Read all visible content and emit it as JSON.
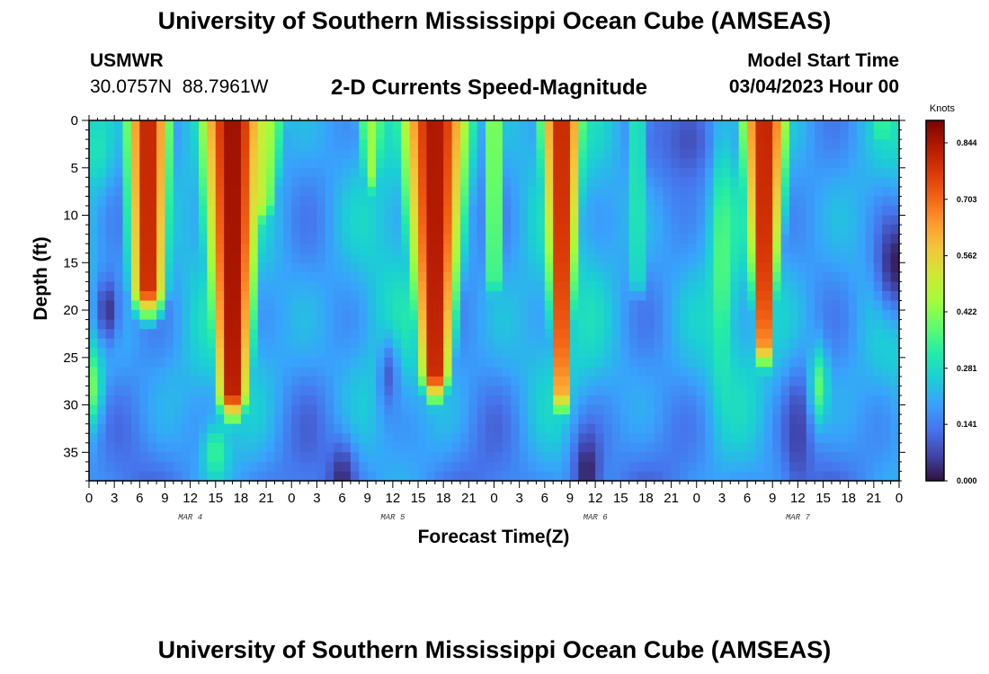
{
  "header": {
    "title": "University of Southern Mississippi Ocean Cube (AMSEAS)",
    "station": "USMWR",
    "coords": "30.0757N  88.7961W",
    "subtitle": "2-D Currents Speed-Magnitude",
    "start_label": "Model Start Time",
    "start_value": "03/04/2023 Hour 00"
  },
  "footer": {
    "title": "University of Southern Mississippi Ocean Cube (AMSEAS)"
  },
  "colors": {
    "scale": [
      "#30123b",
      "#4145ab",
      "#4675ed",
      "#39a2fc",
      "#1bcfd4",
      "#24eca6",
      "#61fc6c",
      "#a4fc3b",
      "#d1e835",
      "#f3c63a",
      "#fe9b2d",
      "#f36315",
      "#d93806",
      "#b11901",
      "#7a0403"
    ]
  },
  "chart_data": {
    "type": "heatmap",
    "title": "2-D Currents Speed-Magnitude",
    "xlabel": "Forecast Time(Z)",
    "ylabel": "Depth (ft)",
    "units": "Knots",
    "xlim": [
      0,
      96
    ],
    "ylim": [
      38,
      0
    ],
    "x_tick_labels": [
      "0",
      "3",
      "6",
      "9",
      "12",
      "15",
      "18",
      "21",
      "0",
      "3",
      "6",
      "9",
      "12",
      "15",
      "18",
      "21",
      "0",
      "3",
      "6",
      "9",
      "12",
      "15",
      "18",
      "21",
      "0",
      "3",
      "6",
      "9",
      "12",
      "15",
      "18",
      "21",
      "0"
    ],
    "date_labels": [
      {
        "label": "MAR 4",
        "hour": 12
      },
      {
        "label": "MAR 5",
        "hour": 36
      },
      {
        "label": "MAR 6",
        "hour": 60
      },
      {
        "label": "MAR 7",
        "hour": 84
      }
    ],
    "y_ticks": [
      0,
      5,
      10,
      15,
      20,
      25,
      30,
      35
    ],
    "colorbar": {
      "min": 0.0,
      "max": 0.9,
      "ticks": [
        "0.000",
        "0.141",
        "0.281",
        "0.422",
        "0.562",
        "0.703",
        "0.844"
      ]
    },
    "features": [
      {
        "type": "plume",
        "center_hour": 7,
        "half_width_top": 3.3,
        "half_width_bottom": 2.4,
        "bottom_depth": 21,
        "peak": 0.86
      },
      {
        "type": "plume",
        "center_hour": 17,
        "half_width_top": 4.8,
        "half_width_bottom": 2.0,
        "bottom_depth": 32,
        "peak": 0.9
      },
      {
        "type": "plume",
        "center_hour": 20.5,
        "half_width_top": 4.0,
        "half_width_bottom": 1.5,
        "bottom_depth": 12,
        "peak": 0.5
      },
      {
        "type": "plume",
        "center_hour": 41,
        "half_width_top": 5.2,
        "half_width_bottom": 1.8,
        "bottom_depth": 30,
        "peak": 0.88
      },
      {
        "type": "plume",
        "center_hour": 48,
        "half_width_top": 2.0,
        "half_width_bottom": 1.0,
        "bottom_depth": 20,
        "peak": 0.45
      },
      {
        "type": "plume",
        "center_hour": 33.5,
        "half_width_top": 2.5,
        "half_width_bottom": 1.0,
        "bottom_depth": 9,
        "peak": 0.45
      },
      {
        "type": "plume",
        "center_hour": 56,
        "half_width_top": 3.2,
        "half_width_bottom": 0.8,
        "bottom_depth": 32,
        "peak": 0.85
      },
      {
        "type": "plume",
        "center_hour": 65,
        "half_width_top": 2.0,
        "half_width_bottom": 1.0,
        "bottom_depth": 20,
        "peak": 0.35
      },
      {
        "type": "plume",
        "center_hour": 80,
        "half_width_top": 3.6,
        "half_width_bottom": 0.8,
        "bottom_depth": 27,
        "peak": 0.86
      },
      {
        "type": "plume",
        "center_hour": 94,
        "half_width_top": 1.6,
        "half_width_bottom": 0.8,
        "bottom_depth": 5,
        "peak": 0.38
      },
      {
        "type": "blob",
        "hour": 2.2,
        "depth": 20,
        "rx": 1.5,
        "ry": 4,
        "value": 0.04
      },
      {
        "type": "blob",
        "hour": 30,
        "depth": 38,
        "rx": 1.5,
        "ry": 4,
        "value": 0.03
      },
      {
        "type": "blob",
        "hour": 59,
        "depth": 37,
        "rx": 1.8,
        "ry": 5,
        "value": 0.02
      },
      {
        "type": "blob",
        "hour": 95.5,
        "depth": 15,
        "rx": 2.5,
        "ry": 6,
        "value": 0.02
      },
      {
        "type": "blob",
        "hour": 35.5,
        "depth": 27,
        "rx": 1.2,
        "ry": 4,
        "value": 0.1
      },
      {
        "type": "blob",
        "hour": 71,
        "depth": 2,
        "rx": 4,
        "ry": 6,
        "value": 0.08
      },
      {
        "type": "blob",
        "hour": 84,
        "depth": 33,
        "rx": 1.5,
        "ry": 6,
        "value": 0.06
      },
      {
        "type": "blob",
        "hour": 75,
        "depth": 15,
        "rx": 1.2,
        "ry": 12,
        "value": 0.38
      },
      {
        "type": "blob",
        "hour": 86.5,
        "depth": 28,
        "rx": 1.0,
        "ry": 4,
        "value": 0.38
      },
      {
        "type": "blob",
        "hour": 0.3,
        "depth": 28,
        "rx": 1.2,
        "ry": 4,
        "value": 0.4
      },
      {
        "type": "blob",
        "hour": 15,
        "depth": 35,
        "rx": 1.5,
        "ry": 3,
        "value": 0.35
      },
      {
        "type": "blob",
        "hour": 1,
        "depth": 3,
        "rx": 1.5,
        "ry": 4,
        "value": 0.3
      }
    ]
  }
}
